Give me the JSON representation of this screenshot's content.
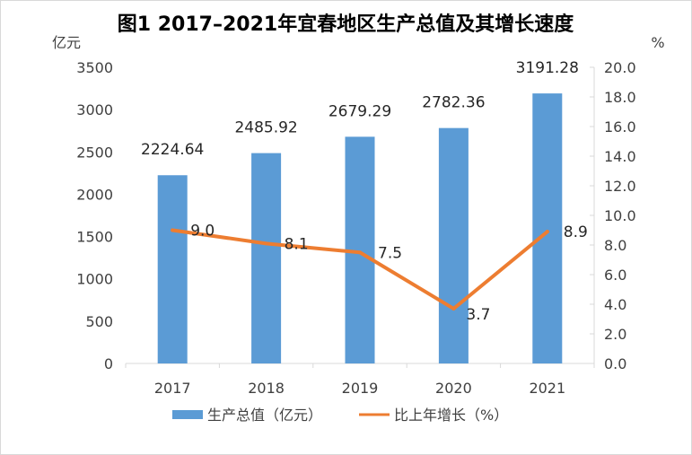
{
  "chart_data": {
    "type": "bar",
    "title": "图1  2017–2021年宜春地区生产总值及其增长速度",
    "left_unit": "亿元",
    "right_unit": "%",
    "categories": [
      "2017",
      "2018",
      "2019",
      "2020",
      "2021"
    ],
    "series": [
      {
        "name": "生产总值（亿元）",
        "type": "bar",
        "axis": "left",
        "color": "#5b9bd5",
        "values": [
          2224.64,
          2485.92,
          2679.29,
          2782.36,
          3191.28
        ],
        "labels": [
          "2224.64",
          "2485.92",
          "2679.29",
          "2782.36",
          "3191.28"
        ]
      },
      {
        "name": "比上年增长（%）",
        "type": "line",
        "axis": "right",
        "color": "#ed7d31",
        "values": [
          9.0,
          8.1,
          7.5,
          3.7,
          8.9
        ],
        "labels": [
          "9.0",
          "8.1",
          "7.5",
          "3.7",
          "8.9"
        ]
      }
    ],
    "y_left": {
      "min": 0,
      "max": 3500,
      "ticks": [
        "0",
        "500",
        "1000",
        "1500",
        "2000",
        "2500",
        "3000",
        "3500"
      ]
    },
    "y_right": {
      "min": 0,
      "max": 20,
      "ticks": [
        "0.0",
        "2.0",
        "4.0",
        "6.0",
        "8.0",
        "10.0",
        "12.0",
        "14.0",
        "16.0",
        "18.0",
        "20.0"
      ]
    },
    "gridlines": false,
    "legend_position": "bottom"
  }
}
